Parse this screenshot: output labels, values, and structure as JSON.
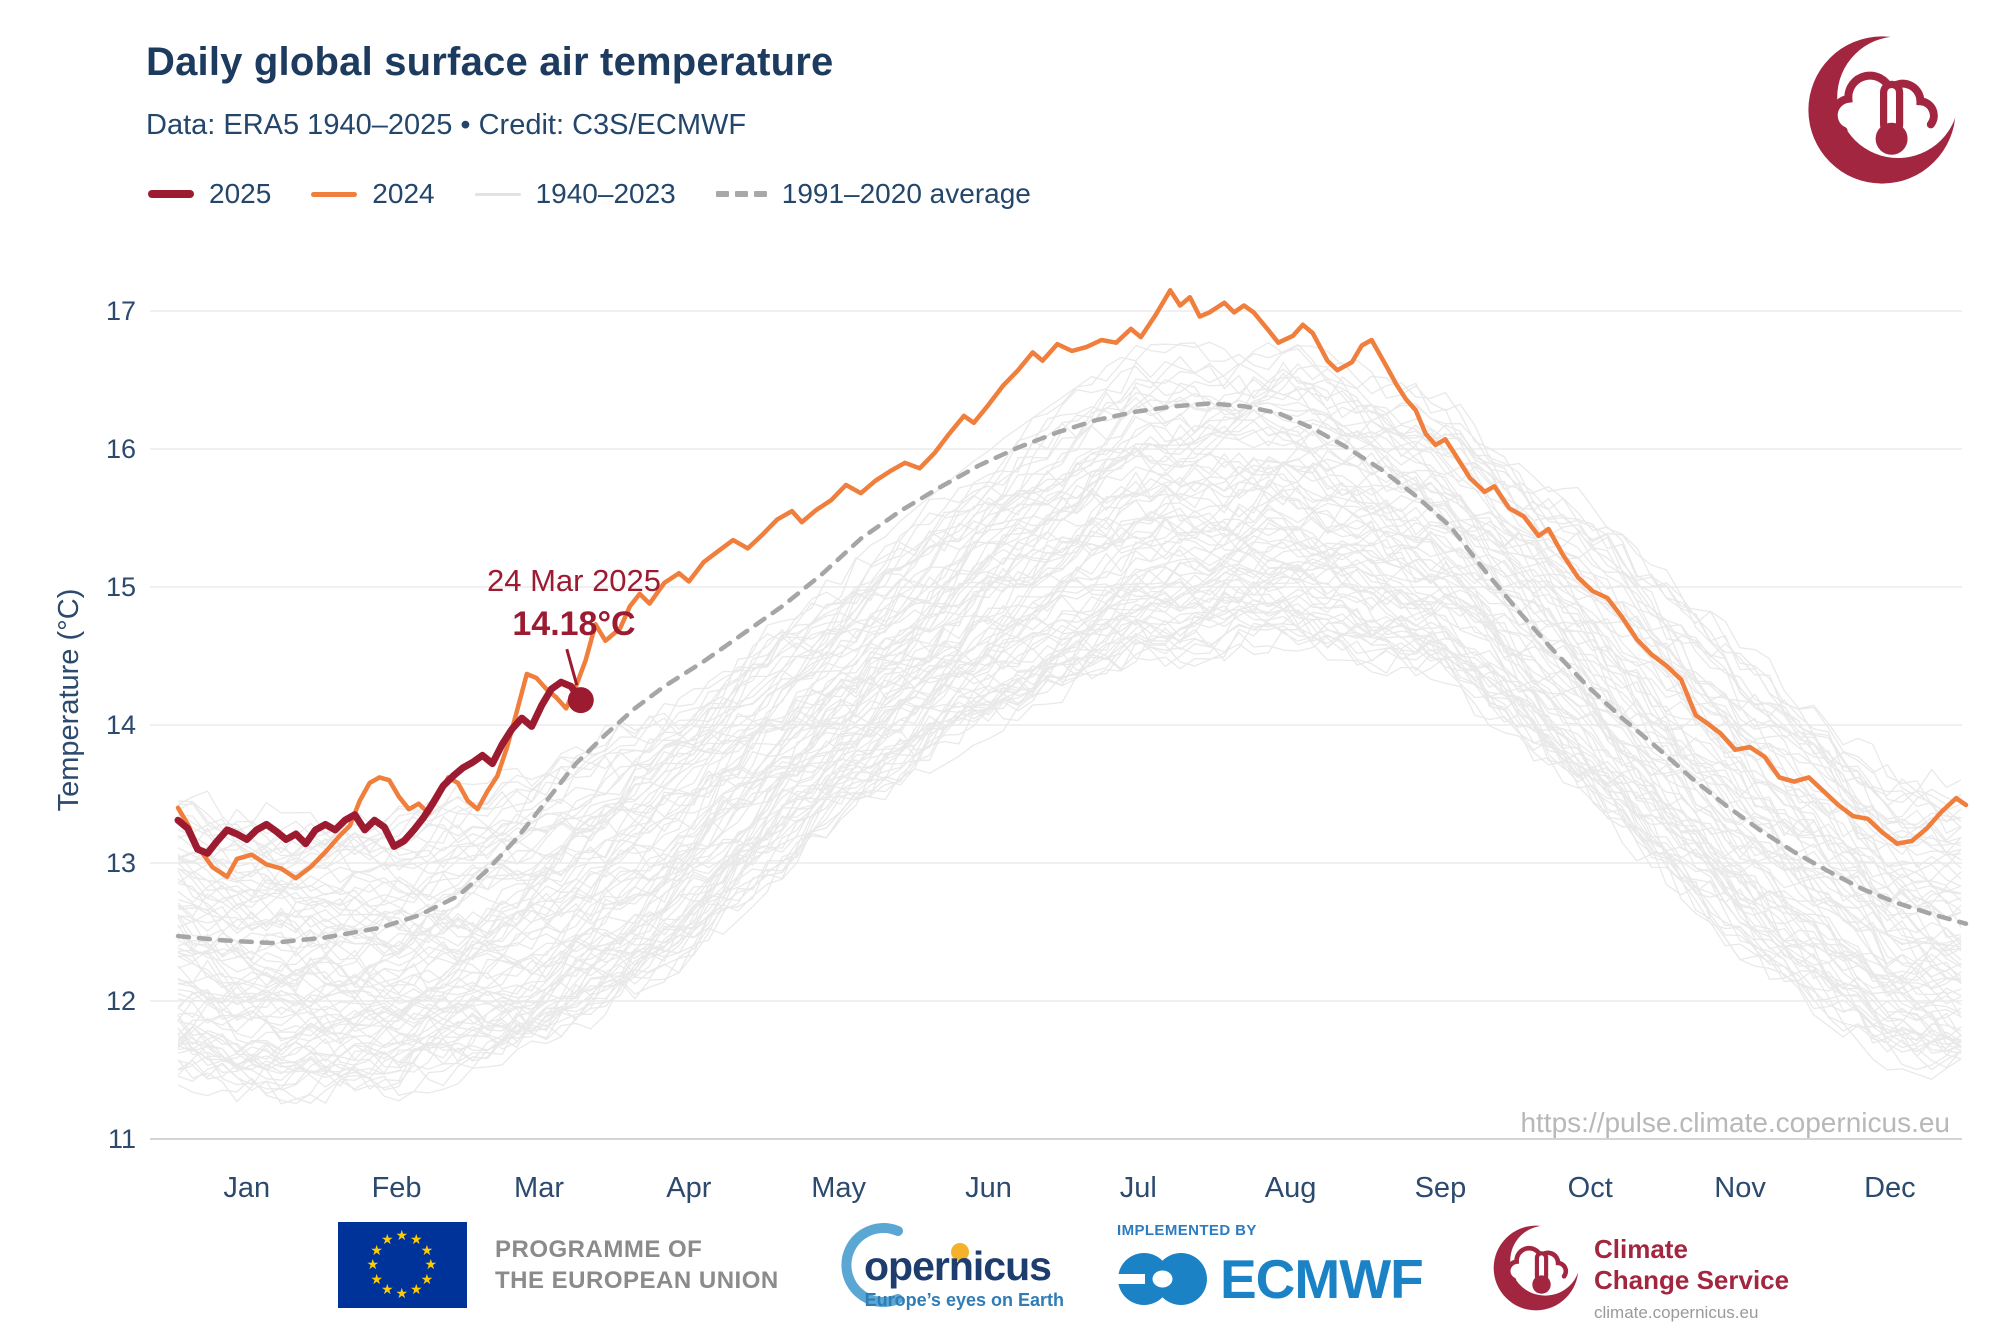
{
  "header": {
    "title": "Daily global surface air temperature",
    "subtitle": "Data: ERA5 1940–2025  •  Credit: C3S/ECMWF"
  },
  "legend": {
    "items": [
      {
        "label": "2025",
        "style": "line-thick",
        "color": "#9C1B31"
      },
      {
        "label": "2024",
        "style": "line",
        "color": "#F07E3C"
      },
      {
        "label": "1940–2023",
        "style": "line-thin",
        "color": "#E2E2E2"
      },
      {
        "label": "1991–2020 average",
        "style": "dashed",
        "color": "#A8A8A8"
      }
    ]
  },
  "annotation": {
    "date_label": "24 Mar 2025",
    "value_label": "14.18°C",
    "day": 83,
    "value": 14.18
  },
  "watermark": "https://pulse.climate.copernicus.eu",
  "icons": {
    "climate_pulse_logo": "crescent-cloud-thermometer",
    "eu_flag": "blue-flag-12-yellow-stars",
    "copernicus_logo": "blue-crescent-wordmark",
    "ecmwf_logo": "blue-interlocked-circles"
  },
  "colors": {
    "title_navy": "#1D3A5F",
    "navy": "#2C4A6E",
    "grid": "#ECECEC",
    "axis": "#D4D4D4",
    "line_2025": "#9C1B31",
    "line_2024": "#F07E3C",
    "ensemble": "#E9E9E9",
    "average": "#A6A6A6",
    "watermark_gray": "#B8B8B8",
    "logo_crimson": "#A32640"
  },
  "chart_data": {
    "type": "line",
    "title": "Daily global surface air temperature",
    "xlabel": "",
    "ylabel": "Temperature (°C)",
    "ylim": [
      11,
      17
    ],
    "y_ticks": [
      11,
      12,
      13,
      14,
      15,
      16,
      17
    ],
    "x_tick_labels": [
      "Jan",
      "Feb",
      "Mar",
      "Apr",
      "May",
      "Jun",
      "Jul",
      "Aug",
      "Sep",
      "Oct",
      "Nov",
      "Dec"
    ],
    "grid": "horizontal",
    "legend_position": "top-left",
    "x_unit": "day_of_year",
    "series": [
      {
        "name": "2025",
        "color": "#9C1B31",
        "width": 7,
        "points": [
          [
            1,
            13.31
          ],
          [
            3,
            13.25
          ],
          [
            5,
            13.1
          ],
          [
            7,
            13.07
          ],
          [
            9,
            13.16
          ],
          [
            11,
            13.24
          ],
          [
            13,
            13.21
          ],
          [
            15,
            13.17
          ],
          [
            17,
            13.24
          ],
          [
            19,
            13.28
          ],
          [
            21,
            13.23
          ],
          [
            23,
            13.17
          ],
          [
            25,
            13.21
          ],
          [
            27,
            13.14
          ],
          [
            29,
            13.24
          ],
          [
            31,
            13.28
          ],
          [
            33,
            13.24
          ],
          [
            35,
            13.31
          ],
          [
            37,
            13.35
          ],
          [
            39,
            13.24
          ],
          [
            41,
            13.31
          ],
          [
            43,
            13.26
          ],
          [
            45,
            13.12
          ],
          [
            47,
            13.16
          ],
          [
            49,
            13.24
          ],
          [
            51,
            13.33
          ],
          [
            53,
            13.44
          ],
          [
            55,
            13.56
          ],
          [
            57,
            13.63
          ],
          [
            59,
            13.69
          ],
          [
            61,
            13.73
          ],
          [
            63,
            13.78
          ],
          [
            65,
            13.72
          ],
          [
            67,
            13.86
          ],
          [
            69,
            13.97
          ],
          [
            71,
            14.05
          ],
          [
            73,
            13.99
          ],
          [
            75,
            14.14
          ],
          [
            77,
            14.26
          ],
          [
            79,
            14.31
          ],
          [
            81,
            14.28
          ],
          [
            83,
            14.18
          ]
        ]
      },
      {
        "name": "2024",
        "color": "#F07E3C",
        "width": 4.5,
        "points": [
          [
            1,
            13.4
          ],
          [
            3,
            13.28
          ],
          [
            5,
            13.12
          ],
          [
            8,
            12.97
          ],
          [
            11,
            12.9
          ],
          [
            13,
            13.03
          ],
          [
            16,
            13.06
          ],
          [
            19,
            12.99
          ],
          [
            22,
            12.96
          ],
          [
            25,
            12.89
          ],
          [
            28,
            12.97
          ],
          [
            31,
            13.08
          ],
          [
            34,
            13.2
          ],
          [
            36,
            13.27
          ],
          [
            38,
            13.45
          ],
          [
            40,
            13.58
          ],
          [
            42,
            13.62
          ],
          [
            44,
            13.6
          ],
          [
            46,
            13.48
          ],
          [
            48,
            13.39
          ],
          [
            50,
            13.43
          ],
          [
            52,
            13.36
          ],
          [
            54,
            13.48
          ],
          [
            56,
            13.62
          ],
          [
            58,
            13.58
          ],
          [
            60,
            13.45
          ],
          [
            62,
            13.39
          ],
          [
            64,
            13.52
          ],
          [
            66,
            13.63
          ],
          [
            68,
            13.84
          ],
          [
            70,
            14.1
          ],
          [
            72,
            14.37
          ],
          [
            74,
            14.34
          ],
          [
            76,
            14.26
          ],
          [
            78,
            14.2
          ],
          [
            80,
            14.12
          ],
          [
            82,
            14.28
          ],
          [
            84,
            14.47
          ],
          [
            86,
            14.73
          ],
          [
            88,
            14.61
          ],
          [
            91,
            14.7
          ],
          [
            93,
            14.86
          ],
          [
            95,
            14.95
          ],
          [
            97,
            14.88
          ],
          [
            100,
            15.03
          ],
          [
            103,
            15.1
          ],
          [
            105,
            15.04
          ],
          [
            108,
            15.18
          ],
          [
            111,
            15.26
          ],
          [
            114,
            15.34
          ],
          [
            117,
            15.28
          ],
          [
            120,
            15.38
          ],
          [
            123,
            15.49
          ],
          [
            126,
            15.55
          ],
          [
            128,
            15.47
          ],
          [
            131,
            15.56
          ],
          [
            134,
            15.63
          ],
          [
            137,
            15.74
          ],
          [
            140,
            15.68
          ],
          [
            143,
            15.77
          ],
          [
            146,
            15.84
          ],
          [
            149,
            15.9
          ],
          [
            152,
            15.86
          ],
          [
            155,
            15.97
          ],
          [
            158,
            16.11
          ],
          [
            161,
            16.24
          ],
          [
            163,
            16.19
          ],
          [
            166,
            16.32
          ],
          [
            169,
            16.46
          ],
          [
            172,
            16.57
          ],
          [
            175,
            16.7
          ],
          [
            177,
            16.64
          ],
          [
            180,
            16.76
          ],
          [
            183,
            16.71
          ],
          [
            186,
            16.74
          ],
          [
            189,
            16.79
          ],
          [
            192,
            16.77
          ],
          [
            195,
            16.87
          ],
          [
            197,
            16.81
          ],
          [
            200,
            16.97
          ],
          [
            203,
            17.15
          ],
          [
            205,
            17.04
          ],
          [
            207,
            17.1
          ],
          [
            209,
            16.96
          ],
          [
            211,
            16.99
          ],
          [
            214,
            17.06
          ],
          [
            216,
            16.99
          ],
          [
            218,
            17.04
          ],
          [
            220,
            16.99
          ],
          [
            223,
            16.86
          ],
          [
            225,
            16.77
          ],
          [
            228,
            16.82
          ],
          [
            230,
            16.9
          ],
          [
            232,
            16.84
          ],
          [
            235,
            16.64
          ],
          [
            237,
            16.57
          ],
          [
            240,
            16.63
          ],
          [
            242,
            16.75
          ],
          [
            244,
            16.79
          ],
          [
            247,
            16.6
          ],
          [
            249,
            16.47
          ],
          [
            251,
            16.36
          ],
          [
            253,
            16.28
          ],
          [
            255,
            16.11
          ],
          [
            257,
            16.03
          ],
          [
            259,
            16.07
          ],
          [
            261,
            15.96
          ],
          [
            264,
            15.79
          ],
          [
            267,
            15.69
          ],
          [
            269,
            15.73
          ],
          [
            272,
            15.57
          ],
          [
            275,
            15.51
          ],
          [
            278,
            15.37
          ],
          [
            280,
            15.42
          ],
          [
            283,
            15.23
          ],
          [
            286,
            15.07
          ],
          [
            289,
            14.97
          ],
          [
            292,
            14.92
          ],
          [
            295,
            14.78
          ],
          [
            298,
            14.62
          ],
          [
            301,
            14.51
          ],
          [
            304,
            14.43
          ],
          [
            307,
            14.33
          ],
          [
            310,
            14.07
          ],
          [
            312,
            14.02
          ],
          [
            315,
            13.94
          ],
          [
            318,
            13.82
          ],
          [
            321,
            13.84
          ],
          [
            324,
            13.77
          ],
          [
            327,
            13.62
          ],
          [
            330,
            13.59
          ],
          [
            333,
            13.62
          ],
          [
            336,
            13.52
          ],
          [
            339,
            13.42
          ],
          [
            342,
            13.34
          ],
          [
            345,
            13.32
          ],
          [
            348,
            13.22
          ],
          [
            351,
            13.14
          ],
          [
            354,
            13.16
          ],
          [
            357,
            13.25
          ],
          [
            360,
            13.37
          ],
          [
            363,
            13.47
          ],
          [
            365,
            13.42
          ]
        ]
      },
      {
        "name": "1991–2020 average",
        "color": "#A6A6A6",
        "width": 4.5,
        "dash": [
          11,
          10
        ],
        "points": [
          [
            1,
            12.47
          ],
          [
            10,
            12.44
          ],
          [
            20,
            12.42
          ],
          [
            31,
            12.46
          ],
          [
            42,
            12.53
          ],
          [
            50,
            12.62
          ],
          [
            58,
            12.76
          ],
          [
            64,
            12.95
          ],
          [
            70,
            13.18
          ],
          [
            76,
            13.45
          ],
          [
            82,
            13.72
          ],
          [
            88,
            13.93
          ],
          [
            94,
            14.12
          ],
          [
            100,
            14.28
          ],
          [
            108,
            14.46
          ],
          [
            116,
            14.66
          ],
          [
            124,
            14.86
          ],
          [
            132,
            15.09
          ],
          [
            140,
            15.35
          ],
          [
            148,
            15.55
          ],
          [
            156,
            15.72
          ],
          [
            164,
            15.88
          ],
          [
            172,
            16.01
          ],
          [
            180,
            16.12
          ],
          [
            188,
            16.21
          ],
          [
            196,
            16.27
          ],
          [
            204,
            16.31
          ],
          [
            211,
            16.33
          ],
          [
            218,
            16.31
          ],
          [
            225,
            16.26
          ],
          [
            232,
            16.15
          ],
          [
            239,
            16.01
          ],
          [
            246,
            15.85
          ],
          [
            253,
            15.66
          ],
          [
            260,
            15.44
          ],
          [
            267,
            15.12
          ],
          [
            274,
            14.82
          ],
          [
            281,
            14.54
          ],
          [
            288,
            14.28
          ],
          [
            295,
            14.05
          ],
          [
            302,
            13.84
          ],
          [
            309,
            13.62
          ],
          [
            316,
            13.42
          ],
          [
            323,
            13.24
          ],
          [
            330,
            13.08
          ],
          [
            337,
            12.94
          ],
          [
            344,
            12.81
          ],
          [
            351,
            12.71
          ],
          [
            358,
            12.63
          ],
          [
            365,
            12.56
          ]
        ]
      }
    ],
    "ensemble": {
      "name": "1940–2023",
      "years": 84,
      "color": "#E9E9E9",
      "width": 1.3,
      "month_mid_days": [
        15,
        46,
        74,
        105,
        135,
        166,
        196,
        227,
        258,
        288,
        319,
        349
      ],
      "envelope_low": [
        11.3,
        11.32,
        11.6,
        12.3,
        13.3,
        13.95,
        14.4,
        14.6,
        14.3,
        13.4,
        12.35,
        11.55
      ],
      "envelope_high": [
        13.42,
        13.4,
        13.7,
        14.3,
        15.05,
        15.95,
        16.7,
        16.75,
        16.4,
        15.65,
        14.6,
        13.75
      ]
    }
  },
  "footer": {
    "eu": {
      "line1": "PROGRAMME OF",
      "line2": "THE EUROPEAN UNION",
      "flag_blue": "#003399",
      "star_yellow": "#FFCC00",
      "text_color": "#8B8B8B"
    },
    "copernicus": {
      "wordmark": "opernicus",
      "tagline": "Europe’s eyes on Earth",
      "blue": "#5AA7D4",
      "navy": "#1C3D6E",
      "tagline_blue": "#2F7CB6",
      "dot_yellow": "#F3B229"
    },
    "ecmwf": {
      "implemented_by": "IMPLEMENTED BY",
      "name": "ECMWF",
      "blue": "#1B82C5"
    },
    "ccs": {
      "line1": "Climate",
      "line2": "Change Service",
      "url": "climate.copernicus.eu",
      "crimson": "#A32640",
      "url_color": "#9A9A9A"
    }
  }
}
